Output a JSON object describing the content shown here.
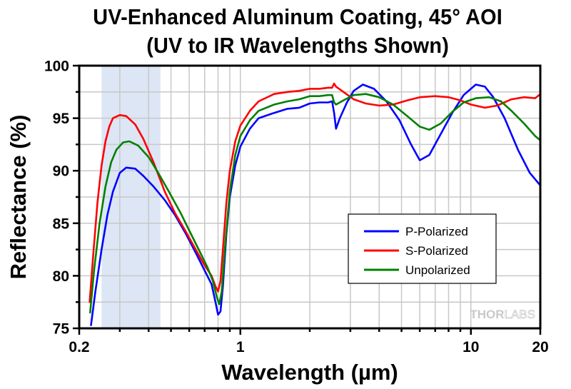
{
  "chart_data": {
    "type": "line",
    "title": "UV-Enhanced Aluminum Coating, 45° AOI",
    "subtitle": "(UV to IR Wavelengths Shown)",
    "xlabel": "Wavelength (µm)",
    "ylabel": "Reflectance (%)",
    "xscale": "log",
    "xlim": [
      0.2,
      20
    ],
    "ylim": [
      75,
      100
    ],
    "x_ticks": [
      0.2,
      1,
      10,
      20
    ],
    "x_tick_labels": [
      "0.2",
      "1",
      "10",
      "20"
    ],
    "y_ticks": [
      75,
      80,
      85,
      90,
      95,
      100
    ],
    "y_tick_labels": [
      "75",
      "80",
      "85",
      "90",
      "95",
      "100"
    ],
    "grid": true,
    "highlight_band": {
      "x_start": 0.25,
      "x_end": 0.45,
      "color": "#dce6f5"
    },
    "legend_position": "center-right",
    "watermark": {
      "bold": "THOR",
      "light": "LABS"
    },
    "series": [
      {
        "name": "P-Polarized",
        "color": "#0000ff",
        "x": [
          0.225,
          0.235,
          0.25,
          0.265,
          0.28,
          0.3,
          0.32,
          0.35,
          0.38,
          0.42,
          0.47,
          0.52,
          0.58,
          0.64,
          0.7,
          0.75,
          0.78,
          0.8,
          0.82,
          0.84,
          0.87,
          0.9,
          0.95,
          1.0,
          1.1,
          1.2,
          1.4,
          1.6,
          1.8,
          2.0,
          2.2,
          2.4,
          2.5,
          2.55,
          2.6,
          2.7,
          2.9,
          3.1,
          3.4,
          3.8,
          4.3,
          4.9,
          5.5,
          6.0,
          6.6,
          7.4,
          8.3,
          9.3,
          10.5,
          11.5,
          12.5,
          14,
          16,
          18,
          20
        ],
        "values": [
          75.3,
          78.5,
          82.5,
          85.8,
          88.0,
          89.8,
          90.3,
          90.2,
          89.5,
          88.5,
          87.2,
          85.8,
          84.0,
          82.2,
          80.5,
          79.2,
          77.5,
          76.3,
          76.6,
          79.0,
          84.0,
          87.5,
          90.5,
          92.3,
          94.0,
          95.0,
          95.5,
          95.9,
          96.0,
          96.4,
          96.5,
          96.5,
          96.6,
          95.5,
          94.0,
          95.0,
          96.5,
          97.6,
          98.2,
          97.8,
          96.6,
          94.8,
          92.5,
          91.0,
          91.5,
          93.5,
          95.5,
          97.2,
          98.2,
          98.0,
          97.0,
          95.0,
          92.0,
          89.8,
          88.6
        ]
      },
      {
        "name": "S-Polarized",
        "color": "#ff0000",
        "x": [
          0.222,
          0.23,
          0.24,
          0.25,
          0.26,
          0.27,
          0.28,
          0.3,
          0.32,
          0.35,
          0.38,
          0.42,
          0.47,
          0.52,
          0.58,
          0.64,
          0.7,
          0.75,
          0.78,
          0.8,
          0.82,
          0.84,
          0.87,
          0.9,
          0.95,
          1.0,
          1.1,
          1.2,
          1.4,
          1.6,
          1.8,
          2.0,
          2.2,
          2.4,
          2.5,
          2.55,
          2.6,
          2.8,
          3.1,
          3.5,
          4.0,
          4.6,
          5.3,
          6.0,
          7.0,
          8.0,
          9.0,
          10.0,
          11.5,
          13,
          15,
          17,
          19,
          20
        ],
        "values": [
          77.5,
          82.0,
          87.0,
          90.5,
          92.8,
          94.2,
          95.0,
          95.3,
          95.2,
          94.4,
          93.0,
          90.8,
          88.0,
          86.0,
          84.2,
          82.5,
          81.0,
          80.0,
          79.0,
          78.5,
          79.5,
          82.5,
          87.0,
          90.0,
          92.8,
          94.3,
          95.7,
          96.6,
          97.3,
          97.5,
          97.6,
          97.8,
          97.8,
          97.9,
          97.9,
          98.3,
          98.0,
          97.5,
          96.8,
          96.4,
          96.2,
          96.3,
          96.7,
          97.0,
          97.1,
          97.0,
          96.7,
          96.3,
          96.0,
          96.2,
          96.8,
          97.0,
          96.9,
          97.3
        ]
      },
      {
        "name": "Unpolarized",
        "color": "#008000",
        "x": [
          0.223,
          0.232,
          0.245,
          0.26,
          0.275,
          0.29,
          0.31,
          0.33,
          0.36,
          0.4,
          0.44,
          0.49,
          0.55,
          0.61,
          0.67,
          0.72,
          0.76,
          0.79,
          0.81,
          0.83,
          0.86,
          0.9,
          0.95,
          1.0,
          1.1,
          1.2,
          1.4,
          1.6,
          1.8,
          2.0,
          2.2,
          2.4,
          2.5,
          2.55,
          2.6,
          2.8,
          3.1,
          3.5,
          4.0,
          4.6,
          5.3,
          6.0,
          6.6,
          7.4,
          8.3,
          9.3,
          10.5,
          12,
          13.5,
          15,
          17,
          19,
          20
        ],
        "values": [
          76.5,
          80.5,
          85.0,
          88.5,
          90.8,
          92.0,
          92.7,
          92.8,
          92.4,
          91.3,
          89.8,
          88.0,
          86.0,
          84.0,
          82.2,
          80.8,
          79.5,
          78.0,
          77.3,
          78.5,
          83.0,
          88.0,
          91.5,
          93.3,
          94.8,
          95.7,
          96.3,
          96.6,
          96.8,
          97.1,
          97.1,
          97.2,
          97.2,
          96.5,
          96.3,
          96.7,
          97.2,
          97.3,
          97.0,
          96.3,
          95.2,
          94.2,
          93.9,
          94.5,
          95.6,
          96.5,
          96.9,
          97.0,
          96.6,
          95.7,
          94.5,
          93.3,
          92.9
        ]
      }
    ]
  }
}
